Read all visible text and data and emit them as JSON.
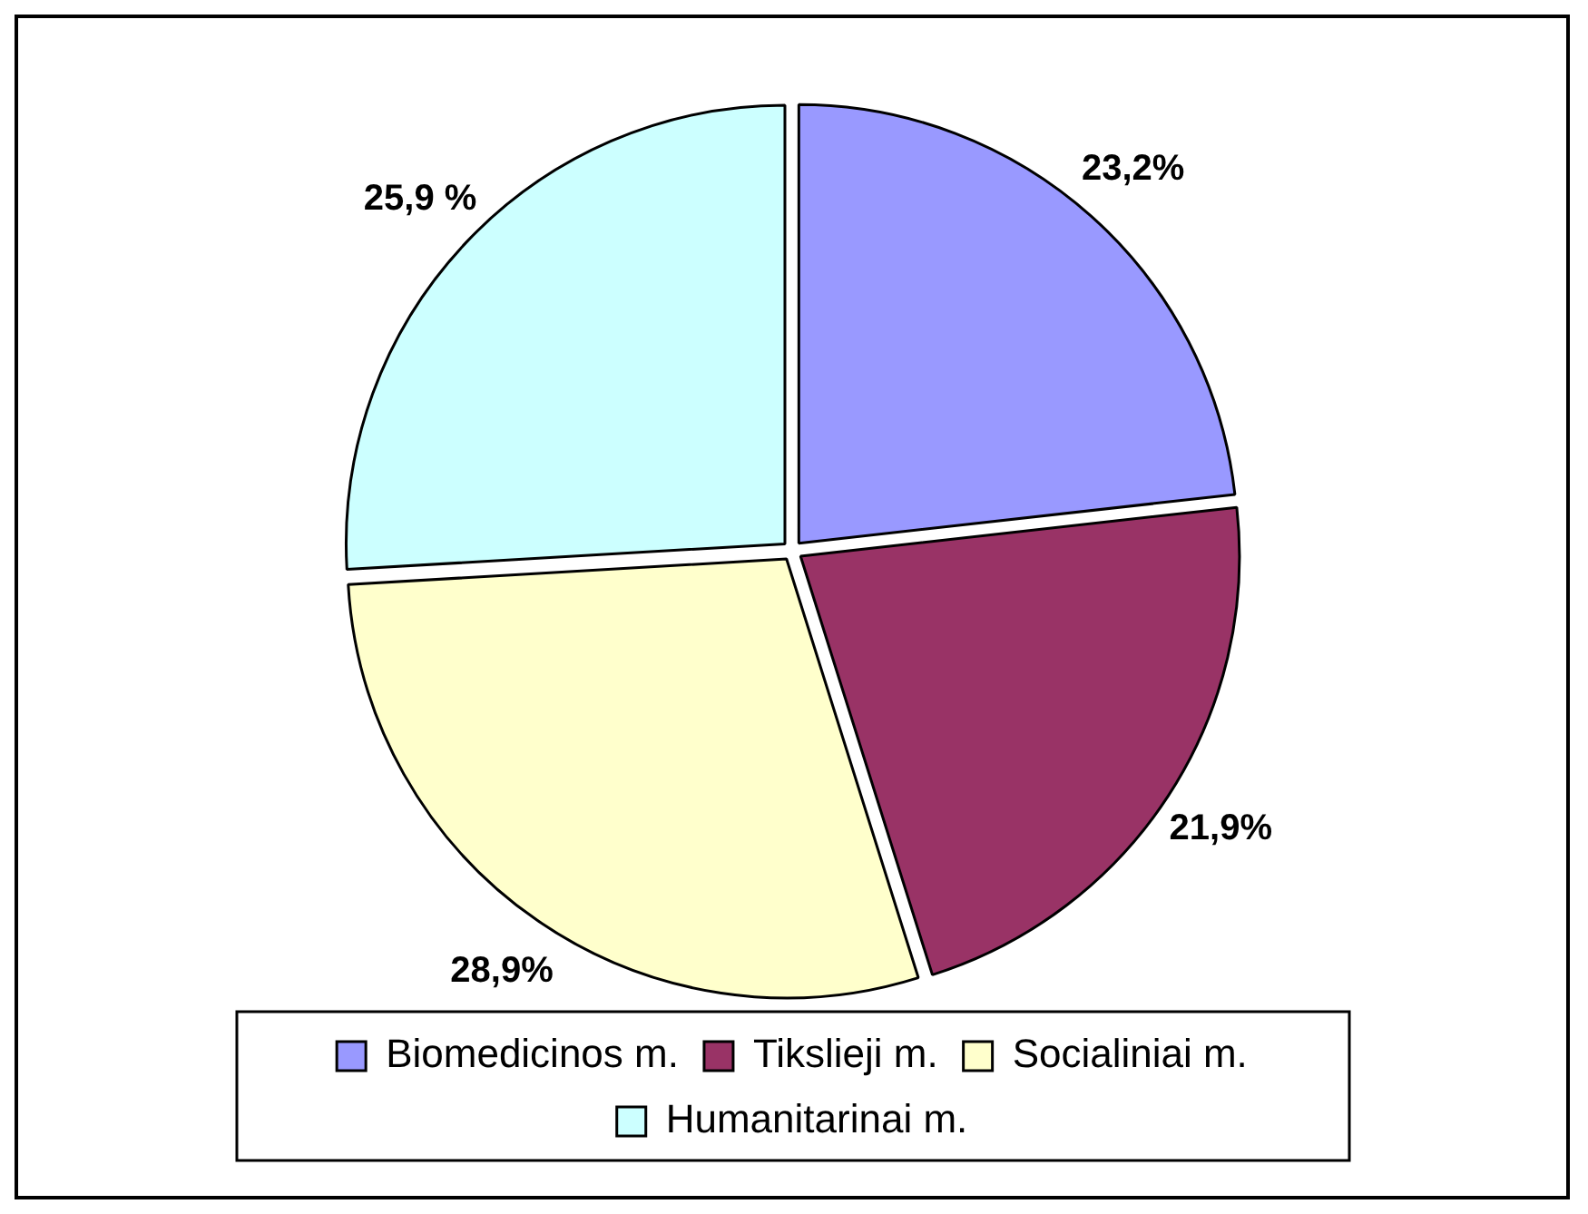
{
  "chart_data": {
    "type": "pie",
    "categories": [
      "Biomedicinos m.",
      "Tikslieji m.",
      "Socialiniai m.",
      "Humanitarinai m."
    ],
    "values": [
      23.2,
      21.9,
      28.9,
      25.9
    ],
    "colors": [
      "#9999ff",
      "#993366",
      "#ffffcc",
      "#ccffff"
    ],
    "value_labels": [
      "23,2%",
      "21,9%",
      "28,9%",
      "25,9 %"
    ],
    "legend": "bottom"
  }
}
